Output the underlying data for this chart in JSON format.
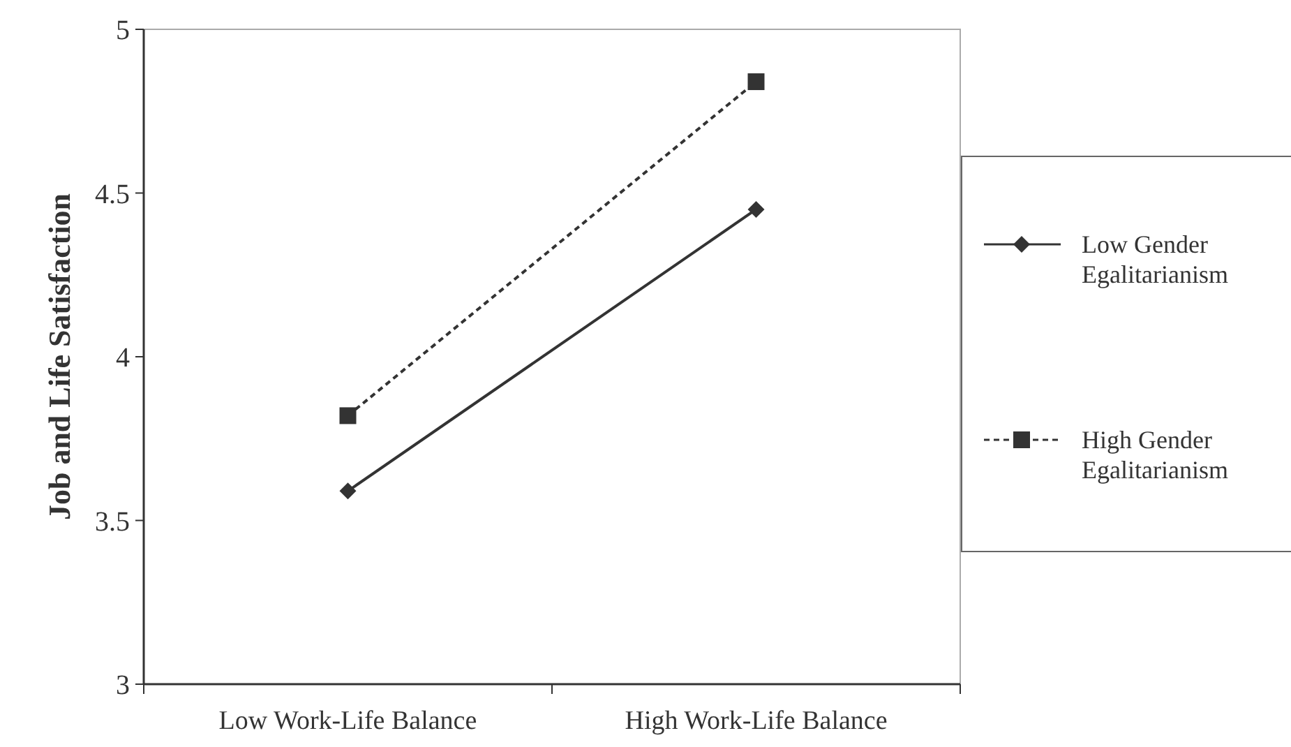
{
  "chart_data": {
    "type": "line",
    "ylabel": "Job and Life Satisfaction",
    "categories": [
      "Low Work-Life Balance",
      "High Work-Life Balance"
    ],
    "series": [
      {
        "name": "Low Gender Egalitarianism",
        "color": "#333333",
        "values": [
          3.59,
          4.45
        ],
        "marker": "diamond",
        "line_style": "solid"
      },
      {
        "name": "High Gender Egalitarianism",
        "color": "#333333",
        "values": [
          3.82,
          4.84
        ],
        "marker": "square",
        "line_style": "dashed"
      }
    ],
    "ylim": [
      3,
      5
    ],
    "yticks": [
      3,
      3.5,
      4,
      4.5,
      5
    ],
    "grid": false,
    "legend": "right"
  }
}
